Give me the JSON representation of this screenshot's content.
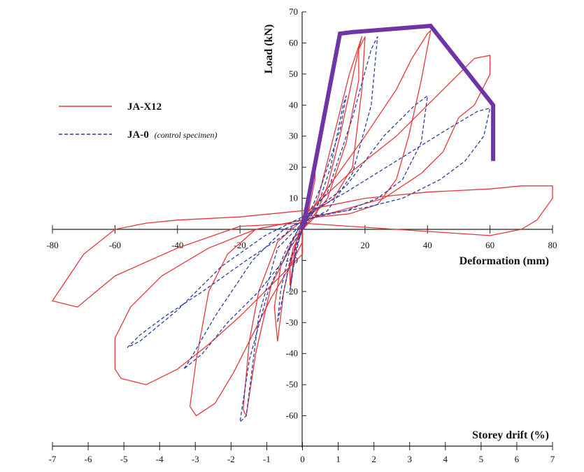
{
  "chart_data": {
    "type": "line",
    "title": "",
    "xlabel": "Deformation (mm)",
    "ylabel": "Load (kN)",
    "x2label": "Storey drift (%)",
    "xlim": [
      -80,
      80
    ],
    "ylim": [
      -70,
      70
    ],
    "x2lim": [
      -7,
      7
    ],
    "x_ticks": [
      -80,
      -60,
      -40,
      -20,
      0,
      20,
      40,
      60,
      80
    ],
    "x_tick_labels": [
      "-80",
      "-60",
      "-40",
      "-20",
      "",
      "20",
      "40",
      "60",
      "80"
    ],
    "y_ticks": [
      -60,
      -50,
      -40,
      -30,
      -20,
      -10,
      10,
      20,
      30,
      40,
      50,
      60,
      70
    ],
    "y_tick_labels": [
      "-60",
      "-50",
      "-40",
      "-30",
      "-20",
      "-10",
      "10",
      "20",
      "30",
      "40",
      "50",
      "60",
      "70"
    ],
    "x2_ticks": [
      -7,
      -6,
      -5,
      -4,
      -3,
      -2,
      -1,
      0,
      1,
      2,
      3,
      4,
      5,
      6,
      7
    ],
    "x2_tick_labels": [
      "-7",
      "-6",
      "-5",
      "-4",
      "-3",
      "-2",
      "-1",
      "0",
      "1",
      "2",
      "3",
      "4",
      "5",
      "6",
      "7"
    ],
    "legend_position": "left",
    "series": [
      {
        "name": "JA-X12",
        "legend_label": "JA-X12",
        "style": "solid",
        "color": "#e8383d",
        "loops": [
          [
            [
              0,
              0
            ],
            [
              2,
              6
            ],
            [
              4,
              16
            ],
            [
              4,
              20
            ],
            [
              2,
              12
            ],
            [
              0,
              3
            ],
            [
              -2,
              -4
            ],
            [
              -4,
              -18
            ],
            [
              -4,
              -12
            ],
            [
              -2,
              -4
            ],
            [
              0,
              0
            ]
          ],
          [
            [
              0,
              0
            ],
            [
              5,
              10
            ],
            [
              10,
              30
            ],
            [
              15,
              50
            ],
            [
              19,
              62
            ],
            [
              18,
              58
            ],
            [
              12,
              30
            ],
            [
              8,
              14
            ],
            [
              4,
              4
            ],
            [
              0,
              0
            ],
            [
              -3,
              -6
            ],
            [
              -6,
              -20
            ],
            [
              -8,
              -36
            ],
            [
              -9,
              -25
            ],
            [
              -7,
              -12
            ],
            [
              -3,
              -3
            ],
            [
              0,
              0
            ]
          ],
          [
            [
              0,
              0
            ],
            [
              8,
              10
            ],
            [
              14,
              28
            ],
            [
              18,
              48
            ],
            [
              18,
              58
            ],
            [
              20,
              62
            ],
            [
              19,
              45
            ],
            [
              16,
              20
            ],
            [
              10,
              10
            ],
            [
              0,
              3
            ],
            [
              -8,
              -4
            ],
            [
              -14,
              -20
            ],
            [
              -17,
              -36
            ],
            [
              -19,
              -58
            ],
            [
              -18,
              -60
            ],
            [
              -15,
              -40
            ],
            [
              -10,
              -18
            ],
            [
              -4,
              -6
            ],
            [
              0,
              0
            ]
          ],
          [
            [
              0,
              2
            ],
            [
              10,
              16
            ],
            [
              20,
              30
            ],
            [
              30,
              45
            ],
            [
              35,
              55
            ],
            [
              40,
              63
            ],
            [
              41,
              64
            ],
            [
              38,
              48
            ],
            [
              34,
              30
            ],
            [
              30,
              16
            ],
            [
              24,
              8
            ],
            [
              15,
              5
            ],
            [
              5,
              4
            ],
            [
              -5,
              2
            ],
            [
              -15,
              0
            ],
            [
              -24,
              -8
            ],
            [
              -30,
              -20
            ],
            [
              -34,
              -42
            ],
            [
              -36,
              -57
            ],
            [
              -34,
              -60
            ],
            [
              -28,
              -56
            ],
            [
              -22,
              -46
            ],
            [
              -16,
              -34
            ],
            [
              -10,
              -22
            ],
            [
              -4,
              -12
            ],
            [
              0,
              -4
            ],
            [
              0,
              2
            ]
          ],
          [
            [
              0,
              4
            ],
            [
              15,
              18
            ],
            [
              30,
              30
            ],
            [
              45,
              45
            ],
            [
              55,
              55
            ],
            [
              60,
              56
            ],
            [
              60,
              50
            ],
            [
              55,
              40
            ],
            [
              50,
              36
            ],
            [
              45,
              25
            ],
            [
              38,
              18
            ],
            [
              26,
              10
            ],
            [
              12,
              6
            ],
            [
              0,
              3
            ],
            [
              -15,
              0
            ],
            [
              -30,
              -6
            ],
            [
              -45,
              -15
            ],
            [
              -55,
              -25
            ],
            [
              -60,
              -35
            ],
            [
              -60,
              -45
            ],
            [
              -58,
              -48
            ],
            [
              -50,
              -50
            ],
            [
              -40,
              -45
            ],
            [
              -30,
              -37
            ],
            [
              -20,
              -28
            ],
            [
              -10,
              -18
            ],
            [
              0,
              -8
            ],
            [
              0,
              4
            ]
          ],
          [
            [
              0,
              6
            ],
            [
              20,
              10
            ],
            [
              40,
              12
            ],
            [
              60,
              13
            ],
            [
              70,
              14
            ],
            [
              80,
              14
            ],
            [
              80,
              10
            ],
            [
              75,
              3
            ],
            [
              70,
              0
            ],
            [
              60,
              -2
            ],
            [
              45,
              -1
            ],
            [
              30,
              0
            ],
            [
              15,
              1
            ],
            [
              0,
              2
            ],
            [
              -20,
              1
            ],
            [
              -40,
              -6
            ],
            [
              -60,
              -15
            ],
            [
              -72,
              -25
            ],
            [
              -80,
              -23
            ],
            [
              -78,
              -20
            ],
            [
              -70,
              -8
            ],
            [
              -60,
              0
            ],
            [
              -50,
              2
            ],
            [
              -40,
              3
            ],
            [
              -20,
              4
            ],
            [
              0,
              6
            ]
          ]
        ]
      },
      {
        "name": "JA-0",
        "legend_label": "JA-0",
        "legend_note": "(control specimen)",
        "style": "dashed",
        "color": "#2a3fa3",
        "loops": [
          [
            [
              0,
              0
            ],
            [
              2,
              8
            ],
            [
              4,
              20
            ],
            [
              3,
              14
            ],
            [
              1,
              4
            ],
            [
              0,
              0
            ],
            [
              -2,
              -6
            ],
            [
              -4,
              -20
            ],
            [
              -3,
              -12
            ],
            [
              -1,
              -3
            ],
            [
              0,
              0
            ]
          ],
          [
            [
              0,
              0
            ],
            [
              6,
              14
            ],
            [
              12,
              32
            ],
            [
              14,
              43
            ],
            [
              13,
              40
            ],
            [
              9,
              20
            ],
            [
              5,
              8
            ],
            [
              0,
              0
            ],
            [
              -4,
              -10
            ],
            [
              -8,
              -30
            ],
            [
              -7,
              -20
            ],
            [
              -4,
              -6
            ],
            [
              0,
              0
            ]
          ],
          [
            [
              0,
              2
            ],
            [
              8,
              12
            ],
            [
              16,
              36
            ],
            [
              22,
              58
            ],
            [
              24,
              62
            ],
            [
              22,
              40
            ],
            [
              16,
              18
            ],
            [
              8,
              6
            ],
            [
              0,
              2
            ],
            [
              -8,
              -6
            ],
            [
              -14,
              -28
            ],
            [
              -18,
              -60
            ],
            [
              -20,
              -62
            ],
            [
              -17,
              -42
            ],
            [
              -11,
              -20
            ],
            [
              -5,
              -6
            ],
            [
              0,
              2
            ]
          ],
          [
            [
              0,
              3
            ],
            [
              14,
              14
            ],
            [
              26,
              30
            ],
            [
              36,
              40
            ],
            [
              40,
              43
            ],
            [
              38,
              28
            ],
            [
              32,
              16
            ],
            [
              24,
              10
            ],
            [
              14,
              6
            ],
            [
              4,
              4
            ],
            [
              -6,
              0
            ],
            [
              -16,
              -10
            ],
            [
              -28,
              -28
            ],
            [
              -36,
              -42
            ],
            [
              -38,
              -45
            ],
            [
              -32,
              -40
            ],
            [
              -24,
              -30
            ],
            [
              -14,
              -20
            ],
            [
              -6,
              -10
            ],
            [
              0,
              3
            ]
          ],
          [
            [
              0,
              4
            ],
            [
              14,
              12
            ],
            [
              30,
              22
            ],
            [
              46,
              32
            ],
            [
              56,
              38
            ],
            [
              60,
              39
            ],
            [
              58,
              30
            ],
            [
              52,
              22
            ],
            [
              44,
              16
            ],
            [
              32,
              10
            ],
            [
              20,
              7
            ],
            [
              8,
              5
            ],
            [
              0,
              4
            ],
            [
              -12,
              -2
            ],
            [
              -26,
              -12
            ],
            [
              -40,
              -26
            ],
            [
              -52,
              -36
            ],
            [
              -56,
              -38
            ],
            [
              -52,
              -34
            ],
            [
              -44,
              -28
            ],
            [
              -32,
              -20
            ],
            [
              -18,
              -10
            ],
            [
              -6,
              -2
            ],
            [
              0,
              4
            ]
          ]
        ]
      },
      {
        "name": "Envelope",
        "legend_label": "",
        "style": "solid",
        "color": "#6f35a6",
        "points": [
          [
            0,
            0
          ],
          [
            12,
            63
          ],
          [
            16,
            63.5
          ],
          [
            41,
            65.5
          ],
          [
            61,
            40
          ],
          [
            61,
            22
          ]
        ]
      }
    ]
  }
}
